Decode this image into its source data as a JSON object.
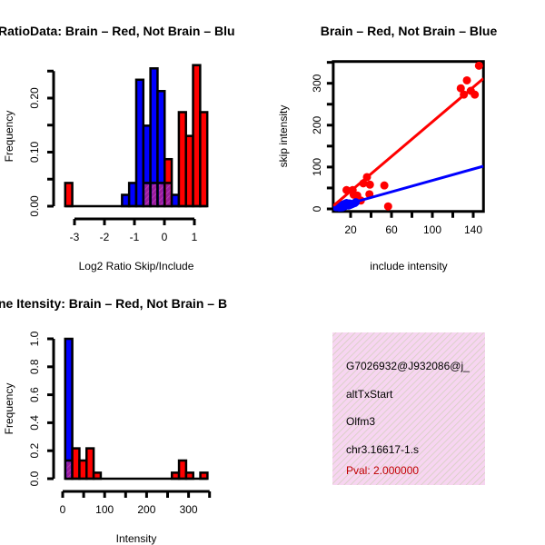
{
  "chart_data": [
    {
      "type": "bar",
      "subtype": "overlaid-histogram",
      "title": "RatioData: Brain – Red, Not Brain – Blu",
      "xlabel": "Log2 Ratio Skip/Include",
      "ylabel": "Frequency",
      "xticks": [
        "-3",
        "-2",
        "-1",
        "0",
        "1"
      ],
      "yticks": [
        "0.00",
        "0.10",
        "0.20"
      ],
      "ylim": [
        0,
        0.26
      ],
      "bin_start": -3.31,
      "bin_width": 0.237,
      "series": [
        {
          "name": "Brain",
          "color": "#ff0000",
          "values": [
            0.043,
            0,
            0,
            0,
            0,
            0,
            0,
            0,
            0,
            0,
            0,
            0.043,
            0.043,
            0.043,
            0.087,
            0,
            0.174,
            0.13,
            0.261,
            0.174
          ]
        },
        {
          "name": "Not Brain",
          "color": "#0000ff",
          "values": [
            0,
            0,
            0,
            0,
            0,
            0,
            0,
            0,
            0.021,
            0.043,
            0.234,
            0.149,
            0.255,
            0.213,
            0.043,
            0.021,
            0,
            0,
            0,
            0
          ]
        }
      ],
      "overlap_color": "#9b1f9b"
    },
    {
      "type": "scatter",
      "title": "Brain – Red, Not Brain – Blue",
      "xlabel": "include intensity",
      "ylabel": "skip intensity",
      "xticks": [
        "20",
        "60",
        "100",
        "140"
      ],
      "yticks": [
        "0",
        "100",
        "200",
        "300"
      ],
      "xlim": [
        3,
        150
      ],
      "ylim": [
        -6,
        352
      ],
      "series": [
        {
          "name": "Brain",
          "color": "#ff0000",
          "points": [
            [
              145.6,
              342
            ],
            [
              133.8,
              307
            ],
            [
              127.8,
              288
            ],
            [
              130.8,
              273
            ],
            [
              137.6,
              282
            ],
            [
              141.5,
              273
            ],
            [
              16,
              45
            ],
            [
              22,
              45
            ],
            [
              23,
              34
            ],
            [
              26.5,
              32
            ],
            [
              32.4,
              61
            ],
            [
              36,
              76
            ],
            [
              38.9,
              58
            ],
            [
              38.4,
              35
            ],
            [
              53,
              56
            ],
            [
              56.7,
              6
            ],
            [
              30,
              20
            ]
          ],
          "fit": {
            "slope": 2.07,
            "intercept": 1
          }
        },
        {
          "name": "Not Brain",
          "color": "#0000ff",
          "points": [
            [
              6,
              4
            ],
            [
              8,
              6
            ],
            [
              9,
              3
            ],
            [
              10,
              8
            ],
            [
              11,
              5
            ],
            [
              12,
              10
            ],
            [
              13,
              7
            ],
            [
              14,
              12
            ],
            [
              15,
              9
            ],
            [
              16,
              14
            ],
            [
              17,
              11
            ],
            [
              18,
              8
            ],
            [
              19,
              13
            ],
            [
              20,
              10
            ],
            [
              22,
              12
            ],
            [
              24,
              14
            ],
            [
              25,
              16
            ],
            [
              10,
              2
            ],
            [
              12,
              4
            ],
            [
              14,
              6
            ]
          ],
          "fit": {
            "slope": 0.68,
            "intercept": 0
          }
        }
      ]
    },
    {
      "type": "bar",
      "subtype": "overlaid-histogram",
      "title": "ne Itensity: Brain – Red, Not Brain – B",
      "xlabel": "Intensity",
      "ylabel": "Frequency",
      "xticks": [
        "0",
        "100",
        "200",
        "300"
      ],
      "yticks": [
        "0.0",
        "0.2",
        "0.4",
        "0.6",
        "0.8",
        "1.0"
      ],
      "ylim": [
        0,
        1.0
      ],
      "bin_start": 6,
      "bin_width": 16.95,
      "series": [
        {
          "name": "Brain",
          "color": "#ff0000",
          "values": [
            0.13,
            0.217,
            0.13,
            0.217,
            0.043,
            0,
            0,
            0,
            0,
            0,
            0,
            0,
            0,
            0,
            0,
            0.043,
            0.13,
            0.043,
            0,
            0.043
          ]
        },
        {
          "name": "Not Brain",
          "color": "#0000ff",
          "values": [
            1.0,
            0,
            0,
            0,
            0,
            0,
            0,
            0,
            0,
            0,
            0,
            0,
            0,
            0,
            0,
            0,
            0,
            0,
            0,
            0
          ]
        }
      ],
      "overlap_color": "#9b1f9b"
    }
  ],
  "info_box": {
    "lines": [
      "G7026932@J932086@j_",
      "altTxStart",
      "Olfm3",
      "chr3.16617-1.s"
    ],
    "pval": "Pval: 2.000000",
    "pval_color": "#c00000"
  }
}
